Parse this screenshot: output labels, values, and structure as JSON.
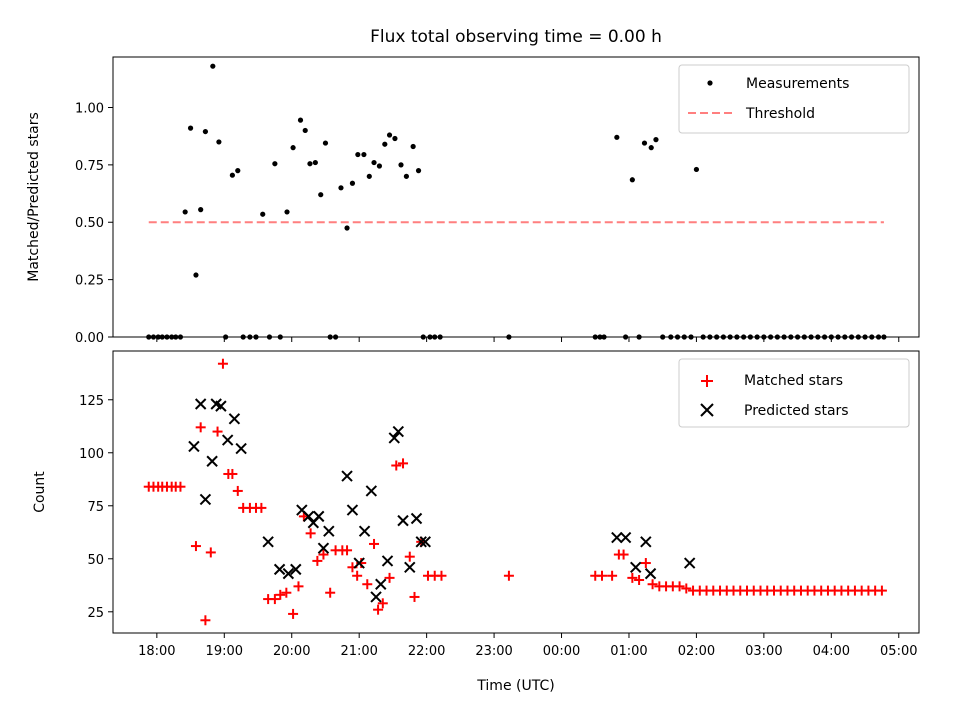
{
  "chart_data": [
    {
      "type": "scatter",
      "title": "Flux total observing time = 0.00 h",
      "xlabel": "",
      "ylabel": "Matched/Predicted stars",
      "ylim": [
        0,
        1.22
      ],
      "yticks": [
        0.0,
        0.25,
        0.5,
        0.75,
        1.0
      ],
      "ytick_labels": [
        "0.00",
        "0.25",
        "0.50",
        "0.75",
        "1.00"
      ],
      "xlim": [
        -0.65,
        11.3
      ],
      "xticks": [
        0,
        1,
        2,
        3,
        4,
        5,
        6,
        7,
        8,
        9,
        10,
        11
      ],
      "legend_position": "upper right",
      "grid": false,
      "series": [
        {
          "name": "Measurements",
          "kind": "dots",
          "color": "#000000",
          "x": [
            -0.12,
            -0.05,
            0.02,
            0.08,
            0.15,
            0.22,
            0.28,
            0.35,
            0.42,
            0.5,
            0.58,
            0.65,
            0.72,
            0.83,
            0.92,
            1.02,
            1.12,
            1.2,
            1.28,
            1.38,
            1.47,
            1.57,
            1.67,
            1.75,
            1.83,
            1.93,
            2.02,
            2.13,
            2.2,
            2.27,
            2.35,
            2.43,
            2.5,
            2.57,
            2.65,
            2.73,
            2.82,
            2.9,
            2.98,
            3.07,
            3.15,
            3.22,
            3.3,
            3.38,
            3.45,
            3.53,
            3.62,
            3.7,
            3.8,
            3.88,
            3.95,
            4.05,
            4.12,
            4.2,
            5.22,
            6.5,
            6.57,
            6.63,
            6.82,
            6.95,
            7.05,
            7.15,
            7.23,
            7.33,
            7.4,
            7.5,
            7.62,
            7.72,
            7.82,
            7.92,
            8.0,
            8.1,
            8.2,
            8.3,
            8.4,
            8.5,
            8.6,
            8.7,
            8.8,
            8.9,
            9.0,
            9.1,
            9.2,
            9.3,
            9.4,
            9.5,
            9.6,
            9.7,
            9.8,
            9.9,
            10.0,
            10.1,
            10.2,
            10.3,
            10.4,
            10.5,
            10.6,
            10.7,
            10.78
          ],
          "y": [
            0.0,
            0.0,
            0.0,
            0.0,
            0.0,
            0.0,
            0.0,
            0.0,
            0.545,
            0.91,
            0.27,
            0.555,
            0.895,
            1.18,
            0.85,
            0.0,
            0.705,
            0.725,
            0.0,
            0.0,
            0.0,
            0.535,
            0.0,
            0.755,
            0.0,
            0.545,
            0.825,
            0.945,
            0.9,
            0.755,
            0.76,
            0.62,
            0.845,
            0.0,
            0.0,
            0.65,
            0.475,
            0.67,
            0.795,
            0.795,
            0.7,
            0.76,
            0.745,
            0.84,
            0.88,
            0.865,
            0.75,
            0.7,
            0.83,
            0.725,
            0.0,
            0.0,
            0.0,
            0.0,
            0.0,
            0.0,
            0.0,
            0.0,
            0.87,
            0.0,
            0.685,
            0.0,
            0.845,
            0.825,
            0.86,
            0.0,
            0.0,
            0.0,
            0.0,
            0.0,
            0.73,
            0.0,
            0.0,
            0.0,
            0.0,
            0.0,
            0.0,
            0.0,
            0.0,
            0.0,
            0.0,
            0.0,
            0.0,
            0.0,
            0.0,
            0.0,
            0.0,
            0.0,
            0.0,
            0.0,
            0.0,
            0.0,
            0.0,
            0.0,
            0.0,
            0.0,
            0.0,
            0.0,
            0.0
          ]
        },
        {
          "name": "Threshold",
          "kind": "dashed-line",
          "color": "#ff7f7f",
          "x": [
            -0.12,
            10.78
          ],
          "y": [
            0.5,
            0.5
          ]
        }
      ]
    },
    {
      "type": "scatter",
      "title": "",
      "xlabel": "Time (UTC)",
      "ylabel": "Count",
      "ylim": [
        15,
        148
      ],
      "yticks": [
        25,
        50,
        75,
        100,
        125
      ],
      "ytick_labels": [
        "25",
        "50",
        "75",
        "100",
        "125"
      ],
      "xlim": [
        -0.65,
        11.3
      ],
      "xticks": [
        0,
        1,
        2,
        3,
        4,
        5,
        6,
        7,
        8,
        9,
        10,
        11
      ],
      "xtick_labels": [
        "18:00",
        "19:00",
        "20:00",
        "21:00",
        "22:00",
        "23:00",
        "00:00",
        "01:00",
        "02:00",
        "03:00",
        "04:00",
        "05:00"
      ],
      "legend_position": "upper right",
      "grid": false,
      "series": [
        {
          "name": "Matched stars",
          "kind": "plus",
          "color": "#ff0000",
          "x": [
            -0.12,
            -0.05,
            0.02,
            0.08,
            0.15,
            0.22,
            0.28,
            0.35,
            0.58,
            0.65,
            0.72,
            0.8,
            0.9,
            0.98,
            1.06,
            1.12,
            1.2,
            1.28,
            1.38,
            1.47,
            1.55,
            1.65,
            1.75,
            1.83,
            1.92,
            2.02,
            2.1,
            2.18,
            2.28,
            2.38,
            2.47,
            2.57,
            2.65,
            2.75,
            2.82,
            2.9,
            2.97,
            3.03,
            3.12,
            3.22,
            3.28,
            3.35,
            3.45,
            3.55,
            3.65,
            3.75,
            3.82,
            3.92,
            4.02,
            4.12,
            4.22,
            5.22,
            6.5,
            6.6,
            6.75,
            6.85,
            6.92,
            7.05,
            7.15,
            7.25,
            7.35,
            7.45,
            7.55,
            7.65,
            7.75,
            7.85,
            7.95,
            8.05,
            8.15,
            8.25,
            8.35,
            8.45,
            8.55,
            8.65,
            8.75,
            8.85,
            8.95,
            9.05,
            9.15,
            9.25,
            9.35,
            9.45,
            9.55,
            9.65,
            9.75,
            9.85,
            9.95,
            10.05,
            10.15,
            10.25,
            10.35,
            10.45,
            10.55,
            10.65,
            10.75
          ],
          "y": [
            84,
            84,
            84,
            84,
            84,
            84,
            84,
            84,
            56,
            112,
            21,
            53,
            110,
            142,
            90,
            90,
            82,
            74,
            74,
            74,
            74,
            31,
            31,
            33,
            34,
            24,
            37,
            70,
            62,
            49,
            52,
            34,
            54,
            54,
            54,
            46,
            42,
            48,
            38,
            57,
            26,
            29,
            41,
            94,
            95,
            51,
            32,
            58,
            42,
            42,
            42,
            42,
            42,
            42,
            42,
            52,
            52,
            41,
            40,
            48,
            38,
            37,
            37,
            37,
            37,
            36,
            35,
            35,
            35,
            35,
            35,
            35,
            35,
            35,
            35,
            35,
            35,
            35,
            35,
            35,
            35,
            35,
            35,
            35,
            35,
            35,
            35,
            35,
            35,
            35,
            35,
            35,
            35,
            35,
            35
          ]
        },
        {
          "name": "Predicted stars",
          "kind": "cross",
          "color": "#000000",
          "x": [
            0.55,
            0.65,
            0.72,
            0.82,
            0.88,
            0.95,
            1.05,
            1.15,
            1.25,
            1.65,
            1.82,
            1.95,
            2.06,
            2.15,
            2.25,
            2.32,
            2.4,
            2.47,
            2.55,
            2.82,
            2.9,
            3.0,
            3.08,
            3.18,
            3.25,
            3.32,
            3.42,
            3.52,
            3.58,
            3.65,
            3.75,
            3.85,
            3.92,
            3.98,
            6.82,
            6.95,
            7.1,
            7.25,
            7.32,
            7.9
          ],
          "y": [
            103,
            123,
            78,
            96,
            123,
            122,
            106,
            116,
            102,
            58,
            45,
            43,
            45,
            73,
            70,
            67,
            70,
            55,
            63,
            89,
            73,
            48,
            63,
            82,
            32,
            38,
            49,
            107,
            110,
            68,
            46,
            69,
            58,
            58,
            60,
            60,
            46,
            58,
            43,
            48
          ]
        }
      ]
    }
  ]
}
